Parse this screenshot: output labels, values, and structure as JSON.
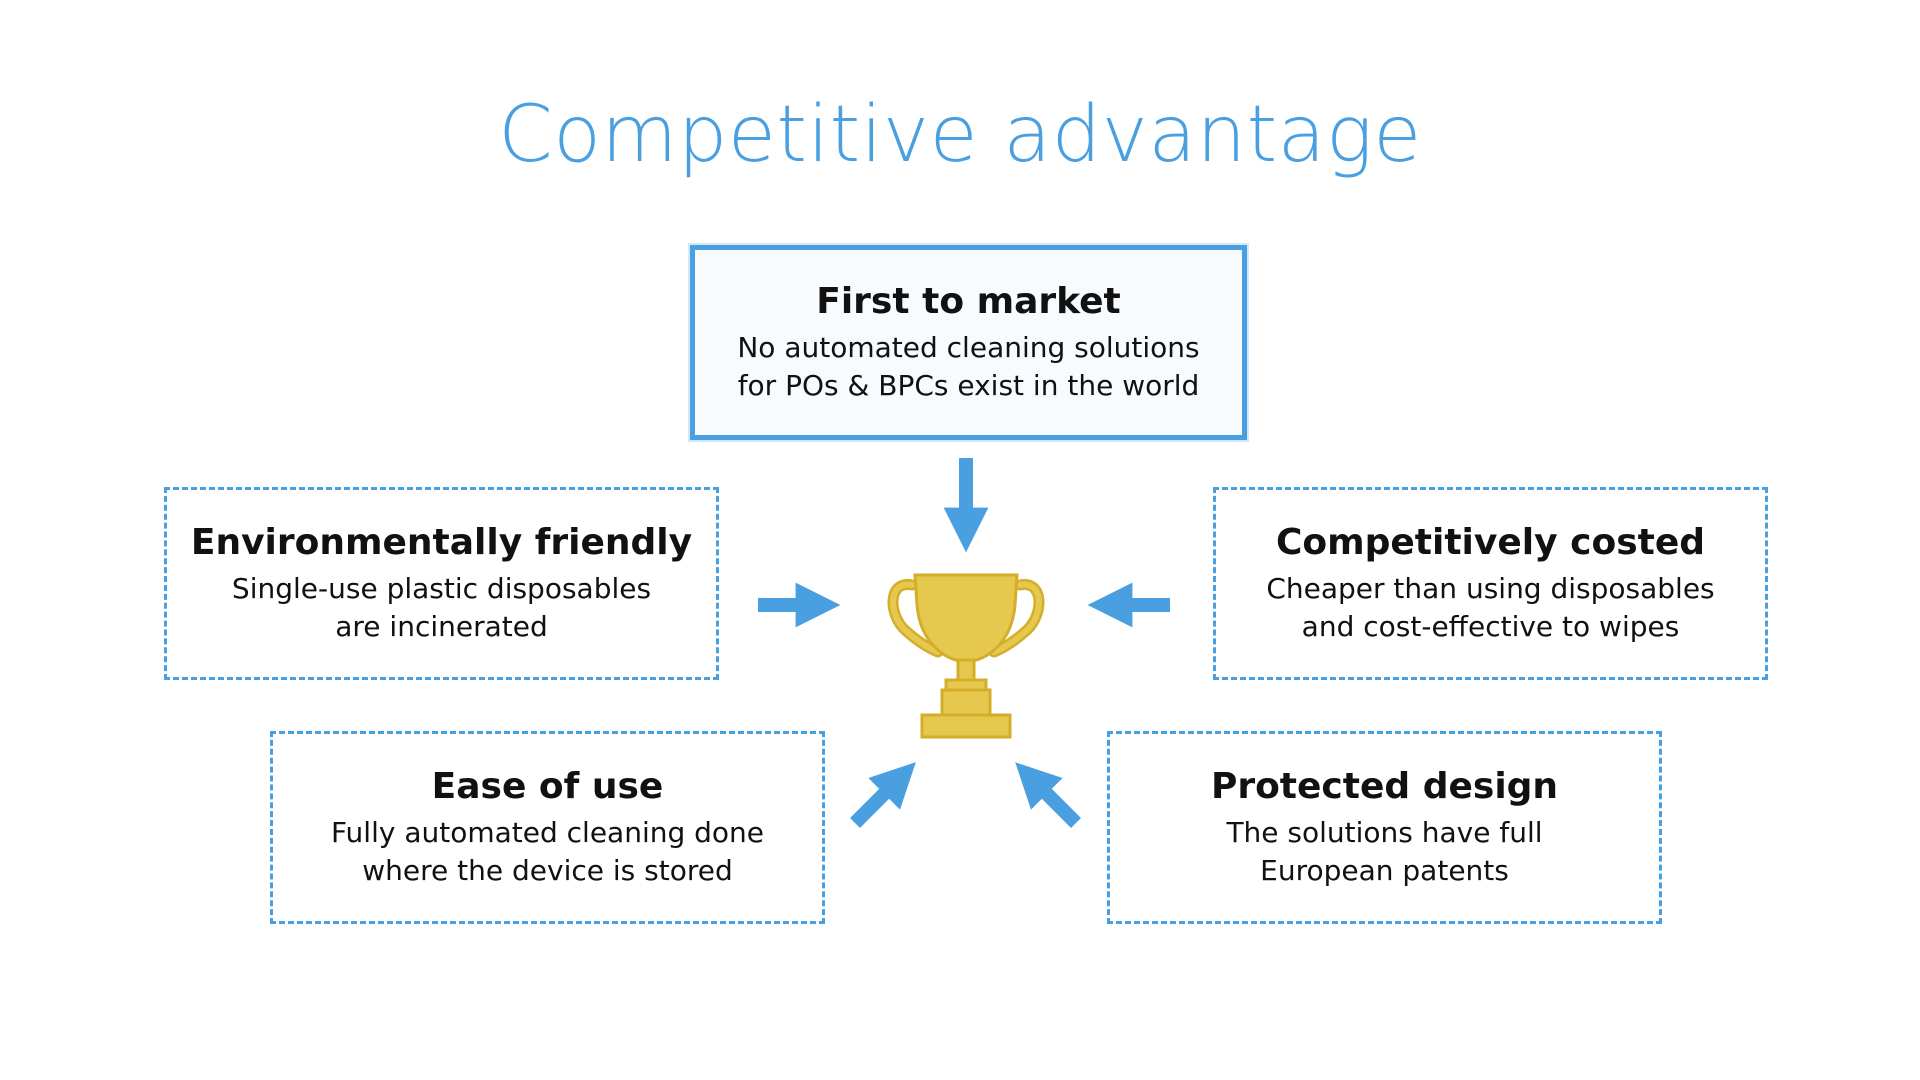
{
  "title": "Competitive advantage",
  "colors": {
    "accent": "#4a9fe0",
    "trophy": "#e6c84f",
    "trophy_outline": "#d4ae2a",
    "text": "#111111"
  },
  "center_icon": "trophy-icon",
  "boxes": {
    "first_to_market": {
      "heading": "First to market",
      "line1": "No automated cleaning solutions",
      "line2": "for POs & BPCs exist in the world"
    },
    "environmentally_friendly": {
      "heading": "Environmentally friendly",
      "line1": "Single-use plastic disposables",
      "line2": "are incinerated"
    },
    "competitively_costed": {
      "heading": "Competitively costed",
      "line1": "Cheaper than using disposables",
      "line2": "and cost-effective to wipes"
    },
    "ease_of_use": {
      "heading": "Ease of use",
      "line1": "Fully automated cleaning done",
      "line2": "where the device is stored"
    },
    "protected_design": {
      "heading": "Protected design",
      "line1": "The solutions have full",
      "line2": "European patents"
    }
  }
}
